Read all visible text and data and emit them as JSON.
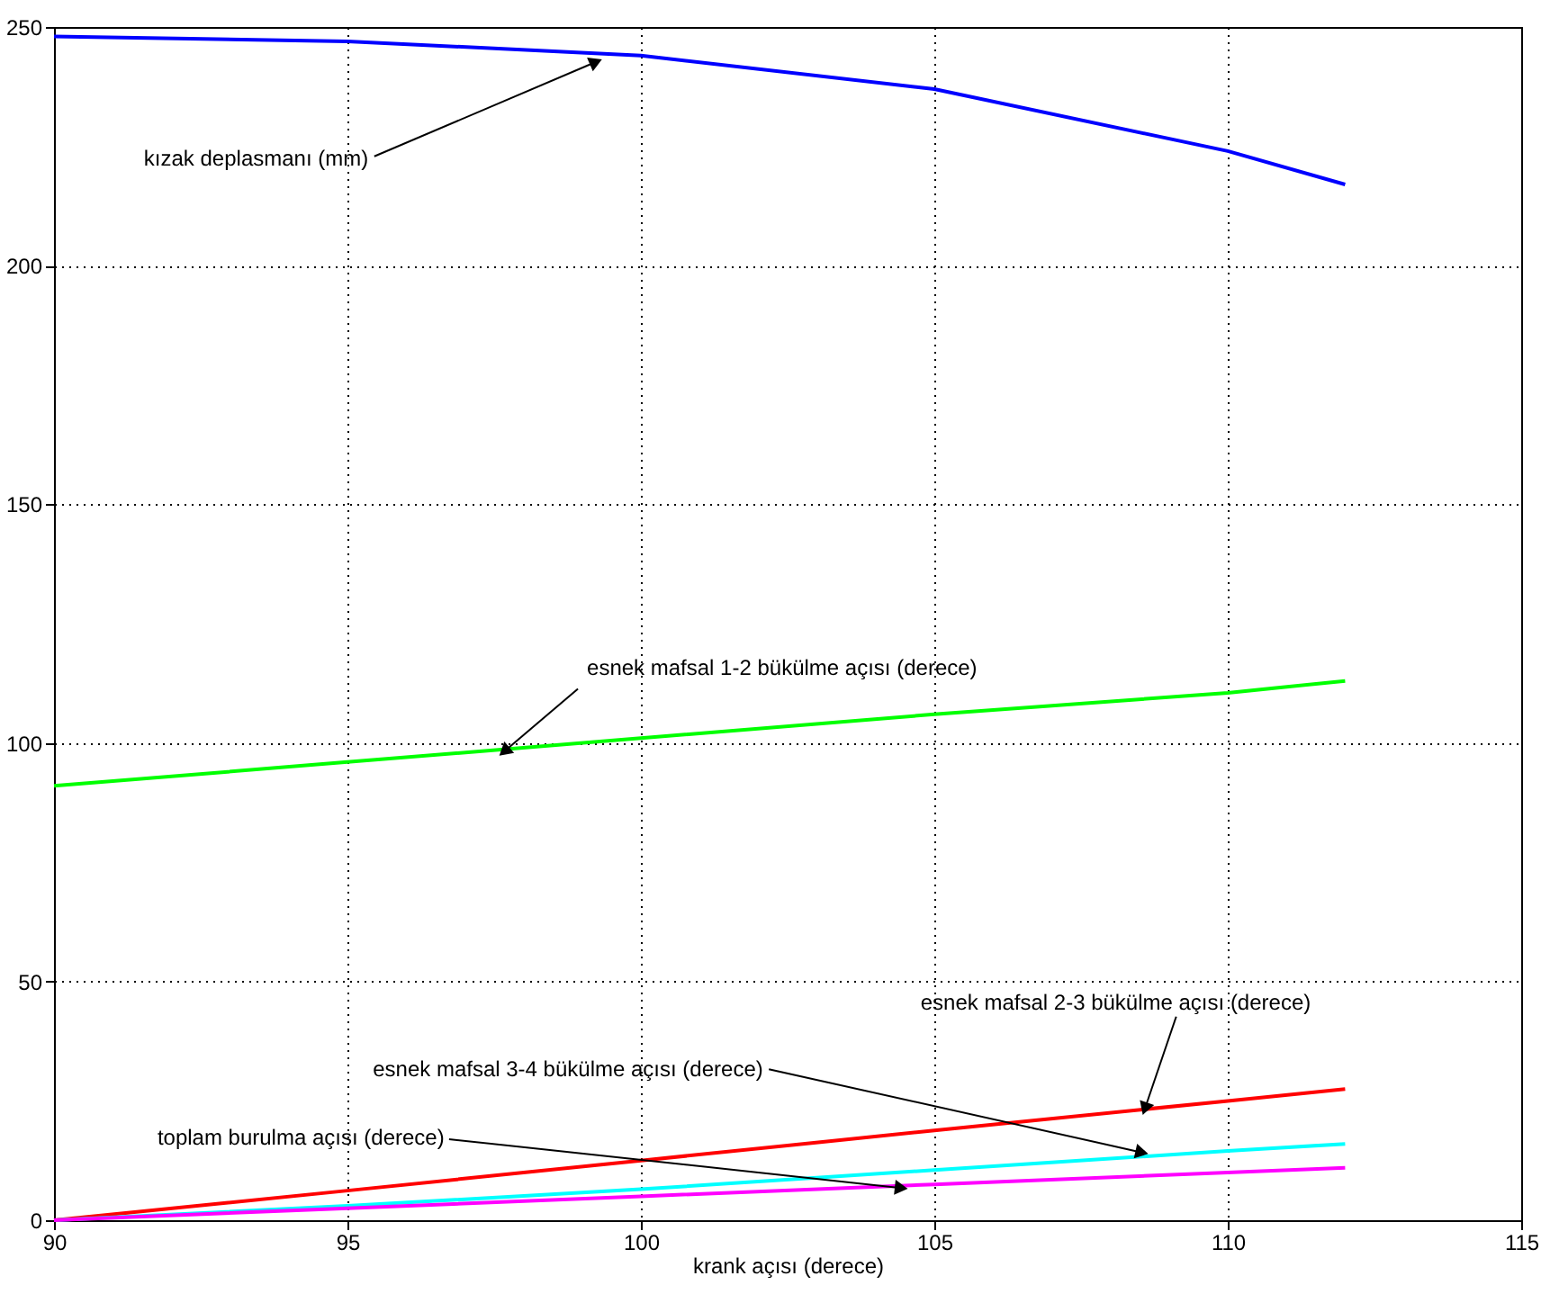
{
  "chart_data": {
    "type": "line",
    "xlabel": "krank açısı (derece)",
    "x": [
      90,
      95,
      100,
      105,
      110,
      112
    ],
    "series": [
      {
        "color": "#0000ff",
        "values": [
          248,
          247,
          244,
          237,
          224,
          217
        ]
      },
      {
        "color": "#00ff00",
        "values": [
          91,
          96,
          101,
          106,
          110.5,
          113
        ]
      },
      {
        "color": "#ff0000",
        "values": [
          0,
          6.2,
          12.5,
          18.8,
          25,
          27.5
        ]
      },
      {
        "color": "#00ffff",
        "values": [
          0,
          3,
          6.5,
          10.5,
          14.5,
          16
        ]
      },
      {
        "color": "#ff00ff",
        "values": [
          0,
          2.5,
          5,
          7.5,
          10,
          11
        ]
      }
    ],
    "xlim": [
      90,
      115
    ],
    "xticks": [
      90,
      95,
      100,
      105,
      110,
      115
    ],
    "ylim": [
      0,
      250
    ],
    "yticks": [
      0,
      50,
      100,
      150,
      200,
      250
    ],
    "grid": true,
    "line_style": "solid",
    "annotations": [
      {
        "text": "kızak deplasmanı (mm)",
        "x": 99.2,
        "y": 242.5
      },
      {
        "text": "esnek mafsal 1-2 bükülme açısı (derece)",
        "x": 97.7,
        "y": 98.5
      },
      {
        "text": "esnek mafsal 2-3 bükülme açısı (derece)",
        "x": 108.6,
        "y": 23.8
      },
      {
        "text": "esnek mafsal 3-4 bükülme açısı (derece)",
        "x": 108.5,
        "y": 14.3
      },
      {
        "text": "toplam burulma açısı (derece)",
        "x": 104.4,
        "y": 6.8
      }
    ]
  }
}
